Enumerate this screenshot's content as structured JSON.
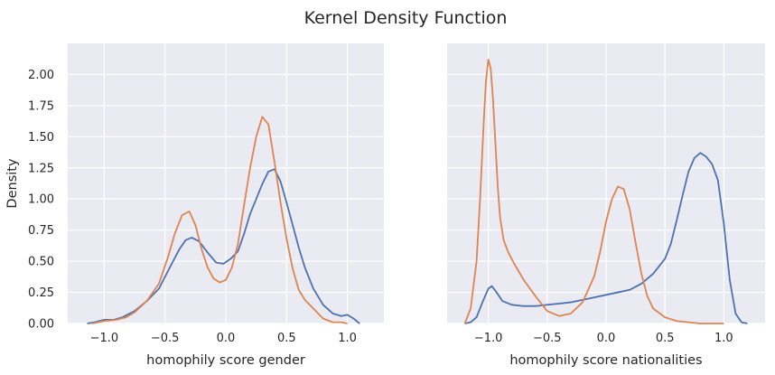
{
  "chart_data": [
    {
      "type": "line",
      "title": "Kernel Density Function",
      "xlabel": "homophily score gender",
      "ylabel": "Density",
      "xlim": [
        -1.3,
        1.3
      ],
      "ylim": [
        0,
        2.25
      ],
      "xticks": [
        -1.0,
        -0.5,
        0.0,
        0.5,
        1.0
      ],
      "xtick_labels": [
        "−1.0",
        "−0.5",
        "0.0",
        "0.5",
        "1.0"
      ],
      "yticks": [
        0,
        0.25,
        0.5,
        0.75,
        1.0,
        1.25,
        1.5,
        1.75,
        2.0
      ],
      "ytick_labels": [
        "0.00",
        "0.25",
        "0.50",
        "0.75",
        "1.00",
        "1.25",
        "1.50",
        "1.75",
        "2.00"
      ],
      "grid": true,
      "legend": "none",
      "series": [
        {
          "color": "#4c72b0",
          "x": [
            -1.14,
            -1.08,
            -1.0,
            -0.92,
            -0.85,
            -0.75,
            -0.65,
            -0.55,
            -0.45,
            -0.38,
            -0.33,
            -0.28,
            -0.22,
            -0.15,
            -0.08,
            -0.02,
            0.04,
            0.1,
            0.15,
            0.2,
            0.25,
            0.3,
            0.35,
            0.4,
            0.45,
            0.5,
            0.55,
            0.6,
            0.65,
            0.72,
            0.8,
            0.88,
            0.95,
            1.0,
            1.05,
            1.1
          ],
          "y": [
            0.0,
            0.01,
            0.03,
            0.03,
            0.05,
            0.1,
            0.18,
            0.28,
            0.47,
            0.6,
            0.67,
            0.69,
            0.66,
            0.57,
            0.49,
            0.48,
            0.52,
            0.58,
            0.72,
            0.88,
            1.0,
            1.12,
            1.22,
            1.24,
            1.14,
            0.97,
            0.79,
            0.61,
            0.45,
            0.28,
            0.15,
            0.08,
            0.06,
            0.07,
            0.04,
            0.0
          ]
        },
        {
          "color": "#dd8452",
          "x": [
            -1.1,
            -1.0,
            -0.9,
            -0.82,
            -0.75,
            -0.65,
            -0.55,
            -0.48,
            -0.42,
            -0.36,
            -0.3,
            -0.25,
            -0.2,
            -0.15,
            -0.1,
            -0.05,
            0.0,
            0.05,
            0.1,
            0.15,
            0.2,
            0.25,
            0.3,
            0.35,
            0.4,
            0.45,
            0.5,
            0.55,
            0.6,
            0.65,
            0.72,
            0.8,
            0.88,
            0.95,
            1.0
          ],
          "y": [
            0.0,
            0.02,
            0.03,
            0.05,
            0.09,
            0.18,
            0.32,
            0.52,
            0.72,
            0.87,
            0.9,
            0.79,
            0.6,
            0.45,
            0.36,
            0.33,
            0.35,
            0.45,
            0.64,
            0.95,
            1.25,
            1.5,
            1.66,
            1.6,
            1.3,
            0.97,
            0.68,
            0.44,
            0.27,
            0.19,
            0.12,
            0.04,
            0.01,
            0.01,
            0.0
          ]
        }
      ]
    },
    {
      "type": "line",
      "xlabel": "homophily score nationalities",
      "ylabel": "",
      "xlim": [
        -1.35,
        1.35
      ],
      "ylim": [
        0,
        2.25
      ],
      "xticks": [
        -1.0,
        -0.5,
        0.0,
        0.5,
        1.0
      ],
      "xtick_labels": [
        "−1.0",
        "−0.5",
        "0.0",
        "0.5",
        "1.0"
      ],
      "yticks": [
        0,
        0.25,
        0.5,
        0.75,
        1.0,
        1.25,
        1.5,
        1.75,
        2.0
      ],
      "ytick_labels": [],
      "grid": true,
      "legend": "none",
      "series": [
        {
          "color": "#4c72b0",
          "x": [
            -1.2,
            -1.15,
            -1.1,
            -1.05,
            -1.0,
            -0.97,
            -0.93,
            -0.88,
            -0.8,
            -0.7,
            -0.6,
            -0.5,
            -0.4,
            -0.3,
            -0.2,
            -0.1,
            0.0,
            0.1,
            0.2,
            0.3,
            0.4,
            0.5,
            0.55,
            0.6,
            0.65,
            0.7,
            0.75,
            0.8,
            0.85,
            0.9,
            0.95,
            1.0,
            1.05,
            1.1,
            1.15,
            1.2
          ],
          "y": [
            0.0,
            0.01,
            0.05,
            0.17,
            0.28,
            0.3,
            0.25,
            0.18,
            0.15,
            0.14,
            0.14,
            0.15,
            0.16,
            0.17,
            0.19,
            0.21,
            0.23,
            0.25,
            0.27,
            0.32,
            0.4,
            0.52,
            0.64,
            0.83,
            1.03,
            1.22,
            1.33,
            1.37,
            1.34,
            1.28,
            1.15,
            0.8,
            0.35,
            0.08,
            0.01,
            0.0
          ]
        },
        {
          "color": "#dd8452",
          "x": [
            -1.2,
            -1.15,
            -1.1,
            -1.07,
            -1.04,
            -1.02,
            -1.0,
            -0.98,
            -0.96,
            -0.94,
            -0.92,
            -0.9,
            -0.87,
            -0.83,
            -0.78,
            -0.7,
            -0.6,
            -0.5,
            -0.4,
            -0.3,
            -0.2,
            -0.1,
            -0.05,
            0.0,
            0.05,
            0.1,
            0.15,
            0.2,
            0.25,
            0.3,
            0.35,
            0.4,
            0.5,
            0.6,
            0.7,
            0.8,
            1.0
          ],
          "y": [
            0.0,
            0.12,
            0.5,
            1.0,
            1.6,
            1.95,
            2.12,
            2.05,
            1.8,
            1.45,
            1.1,
            0.85,
            0.67,
            0.57,
            0.48,
            0.35,
            0.22,
            0.1,
            0.06,
            0.08,
            0.17,
            0.38,
            0.58,
            0.82,
            1.0,
            1.1,
            1.08,
            0.92,
            0.65,
            0.4,
            0.22,
            0.12,
            0.05,
            0.02,
            0.01,
            0.0,
            0.0
          ]
        }
      ]
    }
  ]
}
